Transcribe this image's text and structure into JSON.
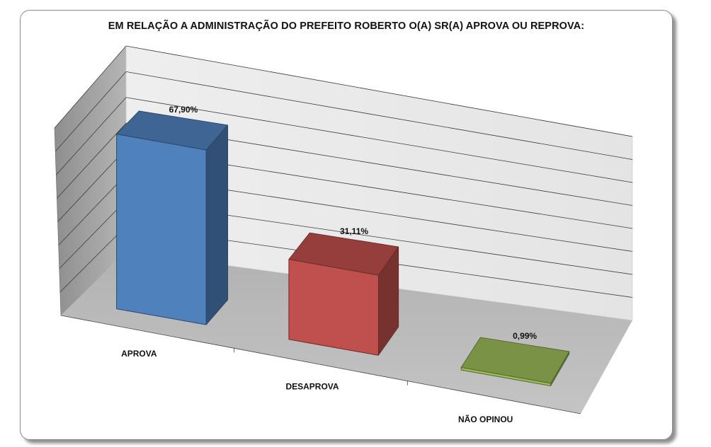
{
  "chart_data": {
    "type": "bar",
    "title": "EM RELAÇÃO A ADMINISTRAÇÃO DO PREFEITO ROBERTO O(A) SR(A) APROVA OU REPROVA:",
    "categories": [
      "APROVA",
      "DESAPROVA",
      "NÃO OPINOU"
    ],
    "values": [
      67.9,
      31.11,
      0.99
    ],
    "value_labels": [
      "67,90%",
      "31,11%",
      "0,99%"
    ],
    "colors": [
      "#4f81bd",
      "#c0504d",
      "#9bbb59"
    ],
    "ylim": [
      0,
      80
    ],
    "grid": true,
    "legend": "none",
    "projection": "3d-perspective"
  }
}
